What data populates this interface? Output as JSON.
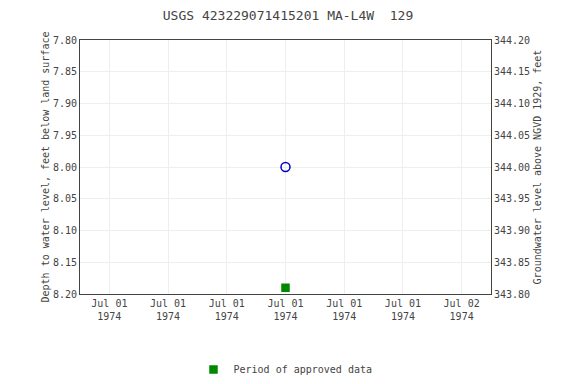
{
  "chart_data": {
    "type": "scatter",
    "title": "USGS 423229071415201 MA-L4W  129",
    "ylabel": "Depth to water level, feet below land surface",
    "y2label": "Groundwater level above NGVD 1929, feet",
    "categories": [
      "Jul 01\n1974",
      "Jul 01\n1974",
      "Jul 01\n1974",
      "Jul 01\n1974",
      "Jul 01\n1974",
      "Jul 01\n1974",
      "Jul 02\n1974"
    ],
    "series": [
      {
        "color": "#0000cc",
        "marker": "circle-open",
        "values": [
          null,
          null,
          null,
          8.0,
          null,
          null,
          null
        ]
      },
      {
        "name": "Period of approved data",
        "color": "#008800",
        "marker": "square",
        "values": [
          null,
          null,
          null,
          8.19,
          null,
          null,
          null
        ]
      }
    ],
    "ylim": [
      8.2,
      7.8
    ],
    "yticks": [
      {
        "value": 7.8,
        "label": "7.80"
      },
      {
        "value": 7.85,
        "label": "7.85"
      },
      {
        "value": 7.9,
        "label": "7.90"
      },
      {
        "value": 7.95,
        "label": "7.95"
      },
      {
        "value": 8.0,
        "label": "8.00"
      },
      {
        "value": 8.05,
        "label": "8.05"
      },
      {
        "value": 8.1,
        "label": "8.10"
      },
      {
        "value": 8.15,
        "label": "8.15"
      },
      {
        "value": 8.2,
        "label": "8.20"
      }
    ],
    "y2lim": [
      343.8,
      344.2
    ],
    "y2ticks": [
      {
        "value": 343.8,
        "label": "343.80"
      },
      {
        "value": 343.85,
        "label": "343.85"
      },
      {
        "value": 343.9,
        "label": "343.90"
      },
      {
        "value": 343.95,
        "label": "343.95"
      },
      {
        "value": 344.0,
        "label": "344.00"
      },
      {
        "value": 344.05,
        "label": "344.05"
      },
      {
        "value": 344.1,
        "label": "344.10"
      },
      {
        "value": 344.15,
        "label": "344.15"
      },
      {
        "value": 344.2,
        "label": "344.20"
      }
    ],
    "grid": true,
    "legend": "bottom"
  }
}
